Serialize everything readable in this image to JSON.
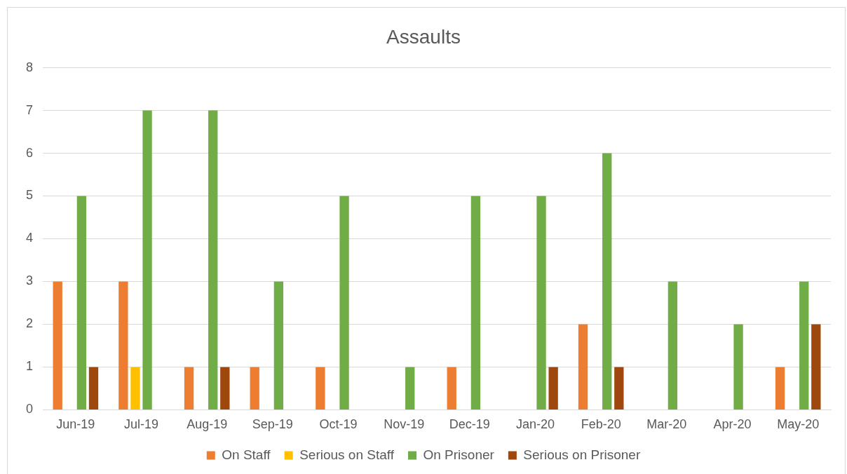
{
  "chart_data": {
    "type": "bar",
    "title": "Assaults",
    "categories": [
      "Jun-19",
      "Jul-19",
      "Aug-19",
      "Sep-19",
      "Oct-19",
      "Nov-19",
      "Dec-19",
      "Jan-20",
      "Feb-20",
      "Mar-20",
      "Apr-20",
      "May-20"
    ],
    "series": [
      {
        "name": "On Staff",
        "color": "#ed7d31",
        "values": [
          3,
          3,
          1,
          1,
          1,
          0,
          1,
          0,
          2,
          0,
          0,
          1
        ]
      },
      {
        "name": "Serious on Staff",
        "color": "#ffc000",
        "values": [
          0,
          1,
          0,
          0,
          0,
          0,
          0,
          0,
          0,
          0,
          0,
          0
        ]
      },
      {
        "name": "On Prisoner",
        "color": "#70ad47",
        "values": [
          5,
          7,
          7,
          3,
          5,
          1,
          5,
          5,
          6,
          3,
          2,
          3
        ]
      },
      {
        "name": "Serious on Prisoner",
        "color": "#9e480e",
        "values": [
          1,
          0,
          1,
          0,
          0,
          0,
          0,
          1,
          1,
          0,
          0,
          2
        ]
      }
    ],
    "ylim": [
      0,
      8
    ],
    "yticks": [
      0,
      1,
      2,
      3,
      4,
      5,
      6,
      7,
      8
    ],
    "grid": "y",
    "legend": "bottom"
  }
}
